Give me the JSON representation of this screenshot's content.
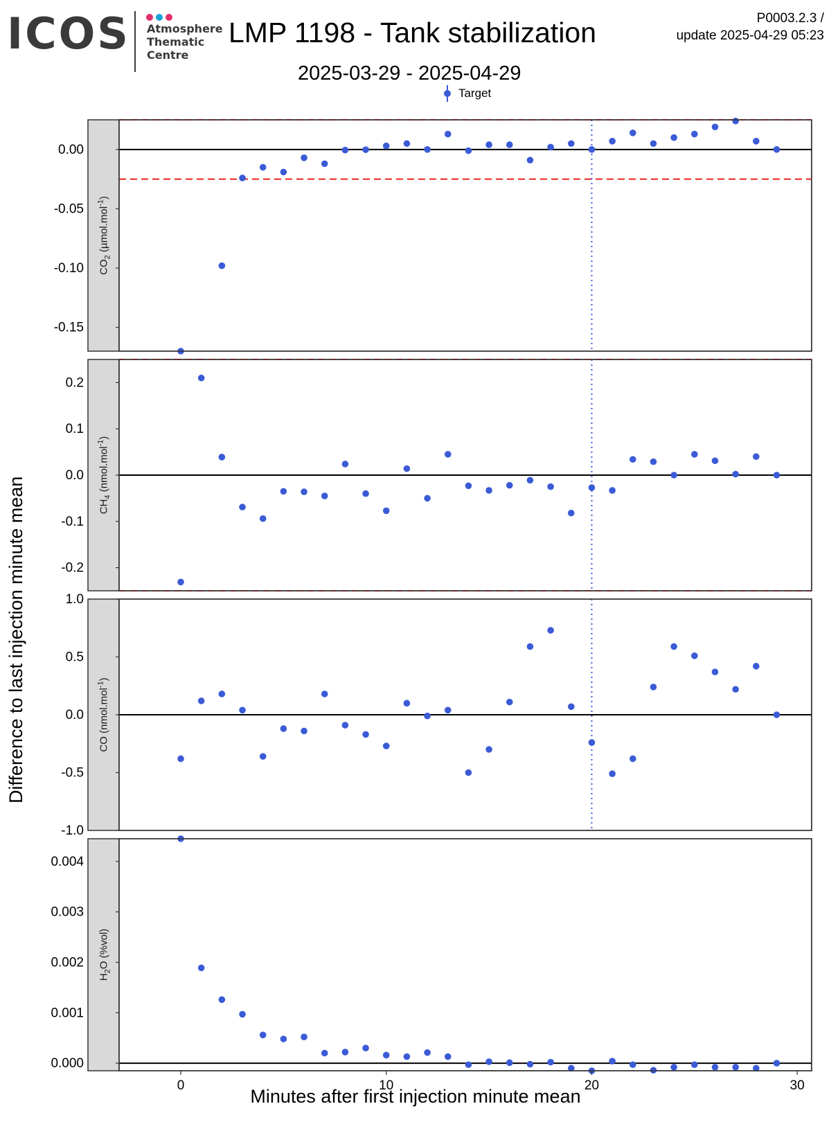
{
  "header": {
    "logo_text": "ICOS",
    "logo_sub": [
      "Atmosphere",
      "Thematic",
      "Centre"
    ],
    "logo_colors": [
      "#e0306a",
      "#1aa3d8",
      "#e0306a"
    ],
    "title": "LMP 1198 - Tank stabilization",
    "subtitle": "2025-03-29 - 2025-04-29",
    "code": "P0003.2.3 /",
    "update": "update  2025-04-29 05:23"
  },
  "legend": {
    "label": "Target",
    "color": "#3b5bd6"
  },
  "axes": {
    "ylabel": "Difference to last injection minute mean",
    "xlabel": "Minutes after first injection minute mean"
  },
  "chart_data": {
    "type": "scatter",
    "title": "LMP 1198 - Tank stabilization",
    "subtitle": "2025-03-29 - 2025-04-29",
    "xlabel": "Minutes after first injection minute mean",
    "ylabel": "Difference to last injection minute mean",
    "xlim": [
      -3,
      30.7
    ],
    "xticks": [
      0,
      10,
      20,
      30
    ],
    "series_name": "Target",
    "color": "#3b5bd6",
    "vline": 20,
    "panels": [
      {
        "label": "CO2 (µmol.mol-1)",
        "ylim": [
          -0.17,
          0.025
        ],
        "yticks": [
          0.0,
          -0.05,
          -0.1,
          -0.15
        ],
        "ytick_labels": [
          "0.00",
          "-0.05",
          "-0.10",
          "-0.15"
        ],
        "threshold": 0.025,
        "x": [
          0,
          1,
          2,
          3,
          4,
          5,
          6,
          7,
          8,
          9,
          10,
          11,
          12,
          13,
          14,
          15,
          16,
          17,
          18,
          19,
          20,
          21,
          22,
          23,
          24,
          25,
          26,
          27,
          28,
          29
        ],
        "y": [
          -0.17,
          null,
          -0.098,
          -0.024,
          -0.015,
          -0.019,
          -0.007,
          -0.012,
          -0.0005,
          -0.0002,
          0.003,
          0.005,
          0.0,
          0.013,
          -0.001,
          0.004,
          0.004,
          -0.009,
          0.002,
          0.005,
          0.0,
          0.007,
          0.014,
          0.005,
          0.01,
          0.013,
          0.019,
          0.024,
          0.007,
          0.0
        ]
      },
      {
        "label": "CH4 (nmol.mol-1)",
        "ylim": [
          -0.25,
          0.25
        ],
        "yticks": [
          0.2,
          0.1,
          0.0,
          -0.1,
          -0.2
        ],
        "ytick_labels": [
          "0.2",
          "0.1",
          "0.0",
          "-0.1",
          "-0.2"
        ],
        "threshold": 0.25,
        "x": [
          0,
          1,
          2,
          3,
          4,
          5,
          6,
          7,
          8,
          9,
          10,
          11,
          12,
          13,
          14,
          15,
          16,
          17,
          18,
          19,
          20,
          21,
          22,
          23,
          24,
          25,
          26,
          27,
          28,
          29
        ],
        "y": [
          -0.231,
          0.21,
          0.039,
          -0.069,
          -0.094,
          -0.035,
          -0.036,
          -0.045,
          0.024,
          -0.04,
          -0.077,
          0.014,
          -0.05,
          0.045,
          -0.023,
          -0.033,
          -0.022,
          -0.011,
          -0.025,
          -0.082,
          -0.027,
          -0.033,
          0.034,
          0.029,
          0.0,
          0.045,
          0.031,
          0.002,
          0.04,
          0.0
        ]
      },
      {
        "label": "CO (nmol.mol-1)",
        "ylim": [
          -1.0,
          1.0
        ],
        "yticks": [
          1.0,
          0.5,
          0.0,
          -0.5,
          -1.0
        ],
        "ytick_labels": [
          "1.0",
          "0.5",
          "0.0",
          "-0.5",
          "-1.0"
        ],
        "x": [
          0,
          1,
          2,
          3,
          4,
          5,
          6,
          7,
          8,
          9,
          10,
          11,
          12,
          13,
          14,
          15,
          16,
          17,
          18,
          19,
          20,
          21,
          22,
          23,
          24,
          25,
          26,
          27,
          28,
          29
        ],
        "y": [
          -0.38,
          0.12,
          0.18,
          0.04,
          -0.36,
          -0.12,
          -0.14,
          0.18,
          -0.09,
          -0.17,
          -0.27,
          0.1,
          -0.01,
          0.04,
          -0.5,
          -0.3,
          0.11,
          0.59,
          0.73,
          0.07,
          -0.24,
          -0.51,
          -0.38,
          0.24,
          0.59,
          0.51,
          0.37,
          0.22,
          0.42,
          0.0
        ]
      },
      {
        "label": "H2O (%vol)",
        "ylim": [
          -0.00015,
          0.00445
        ],
        "yticks": [
          0.004,
          0.003,
          0.002,
          0.001,
          0.0
        ],
        "ytick_labels": [
          "0.004",
          "0.003",
          "0.002",
          "0.001",
          "0.000"
        ],
        "x": [
          0,
          1,
          2,
          3,
          4,
          5,
          6,
          7,
          8,
          9,
          10,
          11,
          12,
          13,
          14,
          15,
          16,
          17,
          18,
          19,
          20,
          21,
          22,
          23,
          24,
          25,
          26,
          27,
          28,
          29
        ],
        "y": [
          0.00445,
          0.00189,
          0.00126,
          0.00097,
          0.00056,
          0.00048,
          0.00052,
          0.0002,
          0.00022,
          0.0003,
          0.00016,
          0.00013,
          0.00021,
          0.00013,
          -3e-05,
          3e-05,
          1e-05,
          -2e-05,
          2e-05,
          -0.0001,
          -0.00015,
          4e-05,
          -3e-05,
          -0.00014,
          -8e-05,
          -3e-05,
          -8e-05,
          -8e-05,
          -0.0001,
          0.0
        ]
      }
    ]
  }
}
